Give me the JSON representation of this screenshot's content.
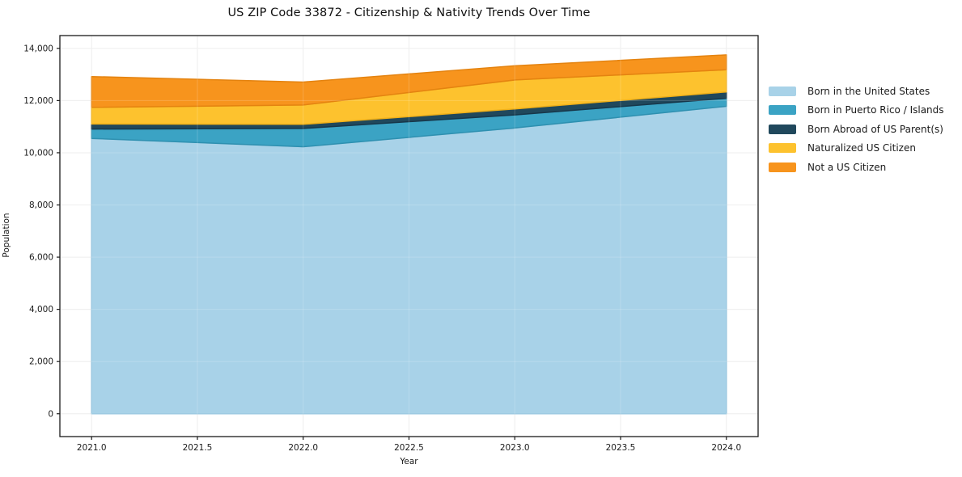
{
  "chart_data": {
    "type": "area",
    "stacked": true,
    "title": "US ZIP Code 33872 - Citizenship & Nativity Trends Over Time",
    "xlabel": "Year",
    "ylabel": "Population",
    "x": [
      2021,
      2022,
      2023,
      2024
    ],
    "series": [
      {
        "name": "Born in the United States",
        "color": "#A8D2E8",
        "edge": "#8FC2DD",
        "values": [
          10550,
          10230,
          10950,
          11780
        ]
      },
      {
        "name": "Born in Puerto Rico / Islands",
        "color": "#3BA3C4",
        "edge": "#2E90B0",
        "values": [
          360,
          700,
          500,
          310
        ]
      },
      {
        "name": "Born Abroad of US Parent(s)",
        "color": "#20485C",
        "edge": "#17374A",
        "values": [
          190,
          160,
          230,
          240
        ]
      },
      {
        "name": "Naturalized US Citizen",
        "color": "#FDC22E",
        "edge": "#F0B018",
        "values": [
          640,
          740,
          1110,
          850
        ]
      },
      {
        "name": "Not a US Citizen",
        "color": "#F7941D",
        "edge": "#E48310",
        "values": [
          1180,
          880,
          540,
          570
        ]
      }
    ],
    "stack_totals": [
      12920,
      12710,
      13330,
      13750
    ],
    "x_ticks": {
      "values": [
        2021,
        2021.5,
        2022,
        2022.5,
        2023,
        2023.5,
        2024
      ],
      "labels": [
        "2021.0",
        "2021.5",
        "2022.0",
        "2022.5",
        "2023.0",
        "2023.5",
        "2024.0"
      ]
    },
    "y_ticks": {
      "values": [
        0,
        2000,
        4000,
        6000,
        8000,
        10000,
        12000,
        14000
      ],
      "labels": [
        "0",
        "2,000",
        "4,000",
        "6,000",
        "8,000",
        "10,000",
        "12,000",
        "14,000"
      ]
    },
    "xlim": [
      2020.85,
      2024.15
    ],
    "ylim": [
      -875,
      14490
    ],
    "grid": true,
    "legend_position": "right-outside"
  },
  "colors": {
    "background": "#FFFFFF",
    "grid": "#EBEBEB",
    "spine": "#1A1A1A",
    "tick_text": "#1A1A1A"
  }
}
